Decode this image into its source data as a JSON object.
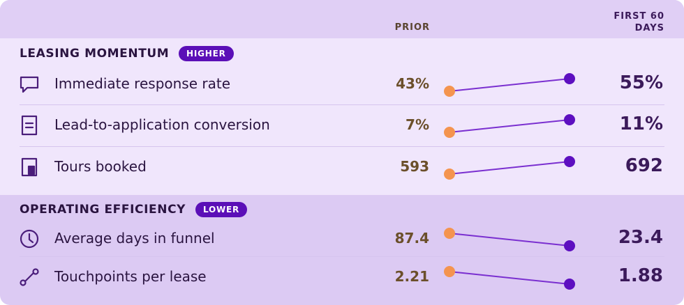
{
  "header": {
    "prior": "PRIOR",
    "current": "FIRST 60 DAYS"
  },
  "sections": [
    {
      "title": "LEASING MOMENTUM",
      "badge": "HIGHER",
      "rows": [
        {
          "label": "Immediate response rate",
          "prior": {
            "value": 43,
            "label": "43%"
          },
          "current": {
            "value": 55,
            "label": "55%"
          }
        },
        {
          "label": "Lead-to-application conversion",
          "prior": {
            "value": 7,
            "label": "7%"
          },
          "current": {
            "value": 11,
            "label": "11%"
          }
        },
        {
          "label": "Tours booked",
          "prior": 593,
          "current": 692
        }
      ]
    },
    {
      "title": "OPERATING EFFICIENCY",
      "badge": "LOWER",
      "rows": [
        {
          "label": "Average days in funnel",
          "prior": 87.4,
          "current": 23.4
        },
        {
          "label": "Touchpoints per lease",
          "prior": 2.21,
          "current": 1.88
        }
      ]
    }
  ]
}
